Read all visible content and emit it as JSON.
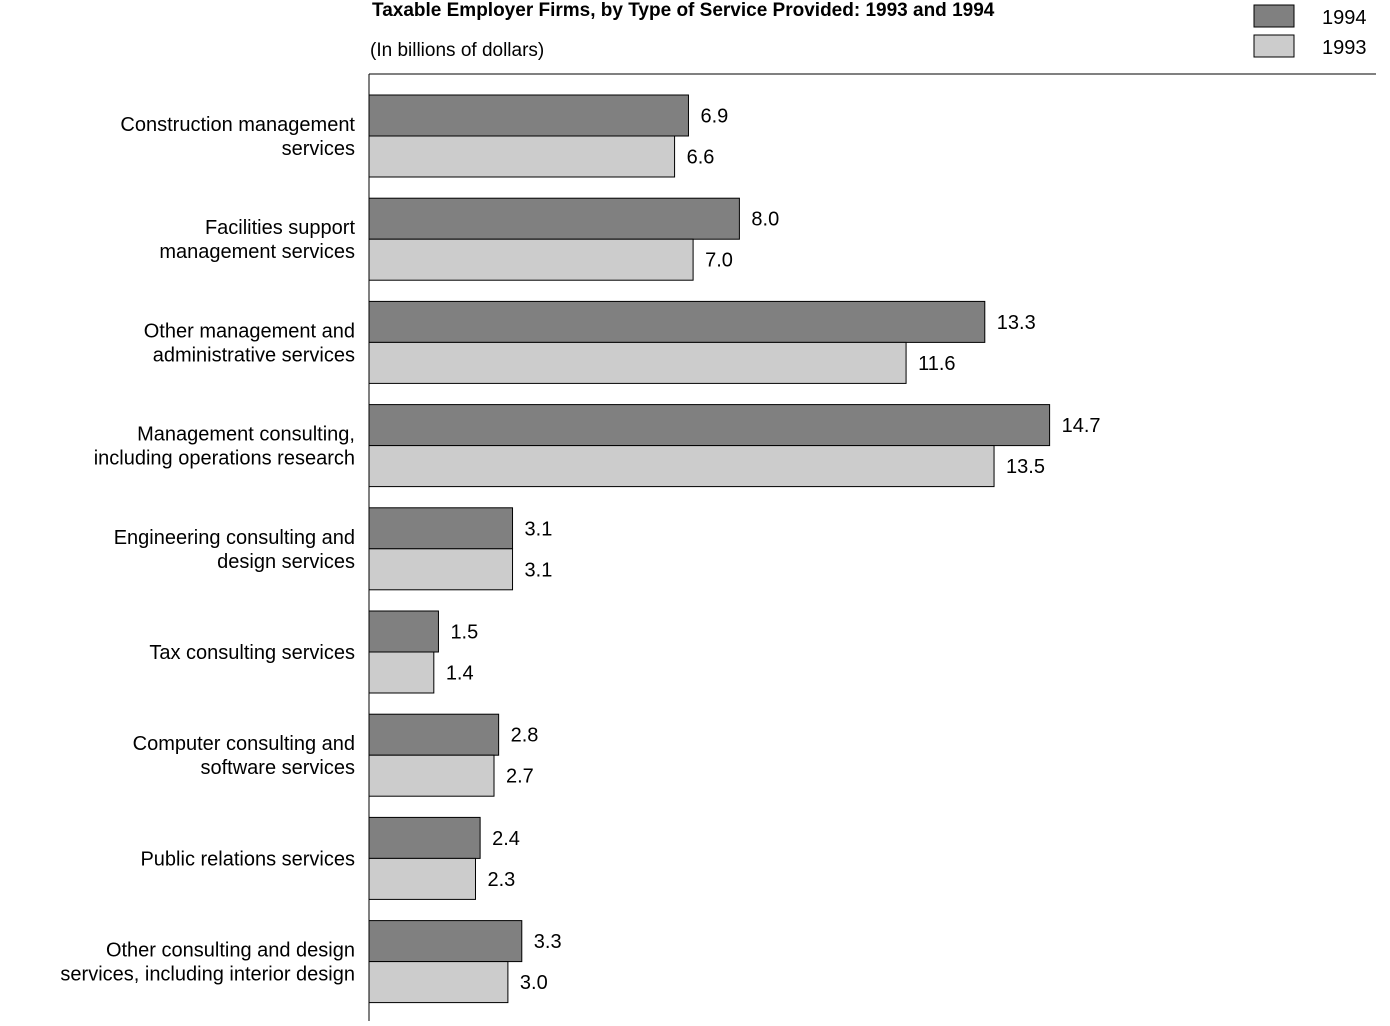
{
  "chart_data": {
    "type": "bar",
    "orientation": "horizontal",
    "title": "Taxable Employer Firms, by Type of Service Provided:  1993 and 1994",
    "subtitle": "(In billions of dollars)",
    "xlabel": "",
    "ylabel": "",
    "xlim": [
      0,
      15
    ],
    "grid": false,
    "legend_position": "top-right",
    "categories": [
      [
        "Construction management",
        "services"
      ],
      [
        "Facilities support",
        "management services"
      ],
      [
        "Other management and",
        "administrative services"
      ],
      [
        "Management consulting,",
        "including operations research"
      ],
      [
        "Engineering consulting and",
        "design services"
      ],
      [
        "Tax consulting services"
      ],
      [
        "Computer consulting and",
        "software services"
      ],
      [
        "Public relations services"
      ],
      [
        "Other consulting and design",
        "services, including interior design"
      ]
    ],
    "series": [
      {
        "name": "1994",
        "color": "#808080",
        "values": [
          6.9,
          8.0,
          13.3,
          14.7,
          3.1,
          1.5,
          2.8,
          2.4,
          3.3
        ],
        "labels": [
          "6.9",
          "8.0",
          "13.3",
          "14.7",
          "3.1",
          "1.5",
          "2.8",
          "2.4",
          "3.3"
        ]
      },
      {
        "name": "1993",
        "color": "#cccccc",
        "values": [
          6.6,
          7.0,
          11.6,
          13.5,
          3.1,
          1.4,
          2.7,
          2.3,
          3.0
        ],
        "labels": [
          "6.6",
          "7.0",
          "11.6",
          "13.5",
          "3.1",
          "1.4",
          "2.7",
          "2.3",
          "3.0"
        ]
      }
    ]
  }
}
